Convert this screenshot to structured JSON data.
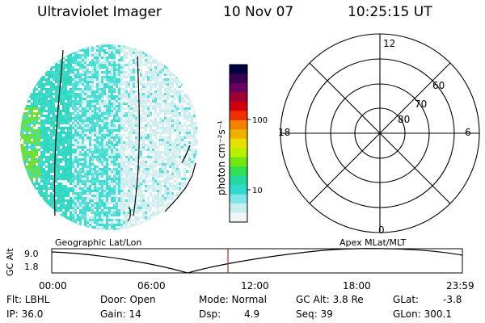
{
  "header": {
    "title": "Ultraviolet Imager",
    "date": "10 Nov 07",
    "time": "10:25:15 UT"
  },
  "colorbar": {
    "unit_label": "photon cm⁻²s⁻¹",
    "ticks": [
      "100",
      "10"
    ],
    "colors": [
      "#000040",
      "#3a0050",
      "#6a0060",
      "#a00030",
      "#d00010",
      "#f03000",
      "#f58000",
      "#f0b000",
      "#e8e000",
      "#b8f000",
      "#70e810",
      "#30e050",
      "#20d8a0",
      "#30d8d0",
      "#80e4e8",
      "#c8eef0",
      "#f0f6f8"
    ]
  },
  "polar": {
    "labels_mlt": [
      "12",
      "18",
      "6",
      "0"
    ],
    "labels_lat": [
      "60",
      "70",
      "80"
    ]
  },
  "timeline": {
    "left_label": "Geographic Lat/Lon",
    "right_label": "Apex MLat/MLT",
    "axis_title": "GC Alt",
    "y_ticks": [
      "9.0",
      "1.8"
    ],
    "x_ticks": [
      "00:00",
      "06:00",
      "12:00",
      "18:00",
      "23:59"
    ],
    "curve_color": "#000000",
    "marker_color": "#cc2222"
  },
  "info": {
    "flt": "Flt: LBHL",
    "ip": "IP: 36.0",
    "door": "Door: Open",
    "gain": "Gain: 14",
    "mode": "Mode: Normal",
    "dsp_label": "Dsp:",
    "dsp_value": "4.9",
    "gc_alt": "GC Alt: 3.8 Re",
    "seq": "Seq: 39",
    "glat_label": "GLat:",
    "glat_value": "-3.8",
    "glon": "GLon: 300.1"
  }
}
